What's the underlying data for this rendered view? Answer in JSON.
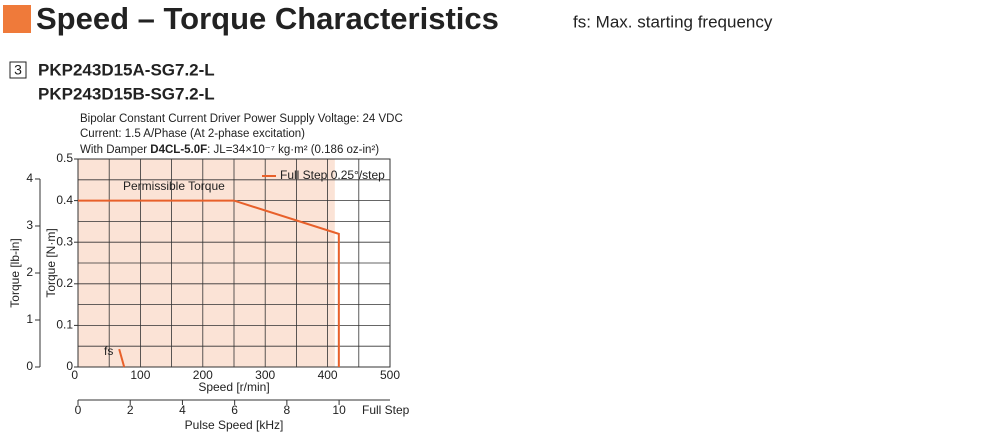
{
  "header": {
    "title": "Speed – Torque Characteristics",
    "note": "fs: Max. starting frequency",
    "number": "3",
    "models": [
      "PKP243D15A-SG7.2-L",
      "PKP243D15B-SG7.2-L"
    ],
    "conditions": [
      "Bipolar Constant Current Driver  Power Supply Voltage: 24 VDC",
      "Current: 1.5 A/Phase (At 2-phase excitation)"
    ],
    "damper_prefix": "With Damper ",
    "damper": "D4CL-5.0F",
    "damper_suffix": ": JL=34×10⁻⁷ kg·m² (0.186 oz-in²)"
  },
  "chart_data": {
    "type": "line",
    "x_label": "Speed [r/min]",
    "y_label": "Torque [N·m]",
    "y2_label": "Torque [lb-in]",
    "x2_label": "Pulse Speed [kHz]",
    "x2_end_label": "Full Step",
    "region_label": "Permissible Torque",
    "xlim": [
      0,
      500
    ],
    "xticks": [
      0,
      100,
      200,
      300,
      400,
      500
    ],
    "xgrid": [
      50,
      100,
      150,
      200,
      250,
      300,
      350,
      400,
      450
    ],
    "ylim": [
      0,
      0.5
    ],
    "yticks": [
      0,
      0.1,
      0.2,
      0.3,
      0.4,
      0.5
    ],
    "ygrid": [
      0.05,
      0.1,
      0.15,
      0.2,
      0.25,
      0.3,
      0.35,
      0.4,
      0.45
    ],
    "y2lim": [
      0,
      4.425
    ],
    "y2ticks": [
      0,
      1,
      2,
      3,
      4
    ],
    "x2lim": [
      0,
      11.95
    ],
    "x2ticks": [
      0,
      2,
      4,
      6,
      8,
      10
    ],
    "region_color": "#fbe3d6",
    "series": [
      {
        "name": "Full Step 0.25°/step",
        "color": "#e8602a",
        "x": [
          0,
          250,
          418,
          418
        ],
        "values": [
          0.4,
          0.4,
          0.32,
          0
        ]
      }
    ],
    "fs_line": {
      "label": "fs",
      "color": "#e8602a",
      "x": [
        66,
        74
      ],
      "values": [
        0.043,
        0
      ]
    }
  }
}
